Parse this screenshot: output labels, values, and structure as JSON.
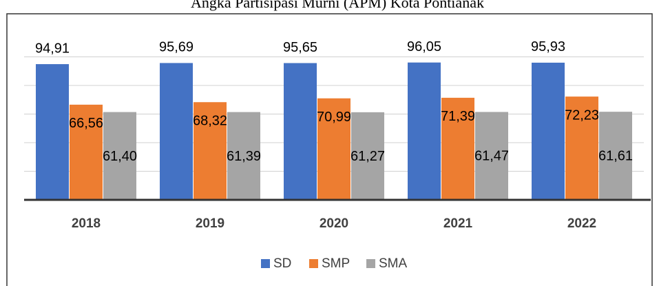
{
  "chart_data": {
    "type": "bar",
    "title": "Angka Partisipasi Murni (APM) Kota Pontianak",
    "categories": [
      "2018",
      "2019",
      "2020",
      "2021",
      "2022"
    ],
    "series": [
      {
        "name": "SD",
        "color": "#4472c4",
        "values": [
          94.91,
          95.69,
          95.65,
          96.05,
          95.93
        ],
        "value_labels": [
          "94,91",
          "95,69",
          "95,65",
          "96,05",
          "95,93"
        ]
      },
      {
        "name": "SMP",
        "color": "#ed7d31",
        "values": [
          66.56,
          68.32,
          70.99,
          71.39,
          72.23
        ],
        "value_labels": [
          "66,56",
          "68,32",
          "70,99",
          "71,39",
          "72,23"
        ]
      },
      {
        "name": "SMA",
        "color": "#a5a5a5",
        "values": [
          61.4,
          61.39,
          61.27,
          61.47,
          61.61
        ],
        "value_labels": [
          "61,40",
          "61,39",
          "61,27",
          "61,47",
          "61,61"
        ]
      }
    ],
    "ylim": [
      0,
      120
    ],
    "yticks": [
      0,
      20,
      40,
      60,
      80,
      100,
      120
    ],
    "grid": true,
    "legend": "bottom"
  }
}
